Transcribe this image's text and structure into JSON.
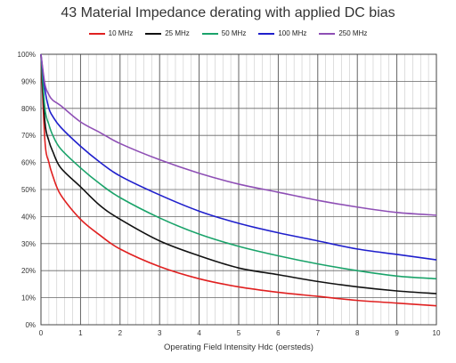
{
  "chart_data": {
    "type": "line",
    "title": "43 Material Impedance derating with applied DC bias",
    "xlabel": "Operating Field Intensity  Hdc (oersteds)",
    "ylabel": "",
    "xlim": [
      0,
      10
    ],
    "ylim": [
      0,
      100
    ],
    "x_ticks": [
      "0",
      "1",
      "2",
      "3",
      "4",
      "5",
      "6",
      "7",
      "8",
      "9",
      "10"
    ],
    "y_ticks": [
      "0%",
      "10%",
      "20%",
      "30%",
      "40%",
      "50%",
      "60%",
      "70%",
      "80%",
      "90%",
      "100%"
    ],
    "grid": true,
    "legend_position": "top",
    "x": [
      0,
      0.1,
      0.2,
      0.3,
      0.5,
      1,
      1.5,
      2,
      3,
      4,
      5,
      6,
      7,
      8,
      9,
      10
    ],
    "series": [
      {
        "name": "10 MHz",
        "color": "#e02020",
        "values": [
          100,
          68,
          60,
          55,
          48,
          39,
          33,
          28,
          21.5,
          17,
          14,
          12,
          10.5,
          9,
          8,
          7
        ]
      },
      {
        "name": "25 MHz",
        "color": "#111111",
        "values": [
          100,
          75,
          68,
          64,
          58,
          51,
          44,
          39,
          31,
          25.5,
          21,
          18.5,
          16,
          14,
          12.5,
          11.5
        ]
      },
      {
        "name": "50 MHz",
        "color": "#1aa36a",
        "values": [
          100,
          80,
          74,
          70,
          65,
          58,
          52,
          47,
          39.5,
          33.5,
          29,
          25.5,
          22.5,
          20,
          18,
          17
        ]
      },
      {
        "name": "100 MHz",
        "color": "#1f1fcc",
        "values": [
          100,
          87,
          80,
          77,
          73,
          66,
          60,
          55,
          48,
          42,
          37.5,
          34,
          31,
          28,
          26,
          24
        ]
      },
      {
        "name": "250 MHz",
        "color": "#8e4fb5",
        "values": [
          100,
          89,
          85,
          83,
          81,
          75,
          71,
          67,
          61,
          56,
          52,
          49,
          46,
          43.5,
          41.5,
          40.5
        ]
      }
    ]
  }
}
